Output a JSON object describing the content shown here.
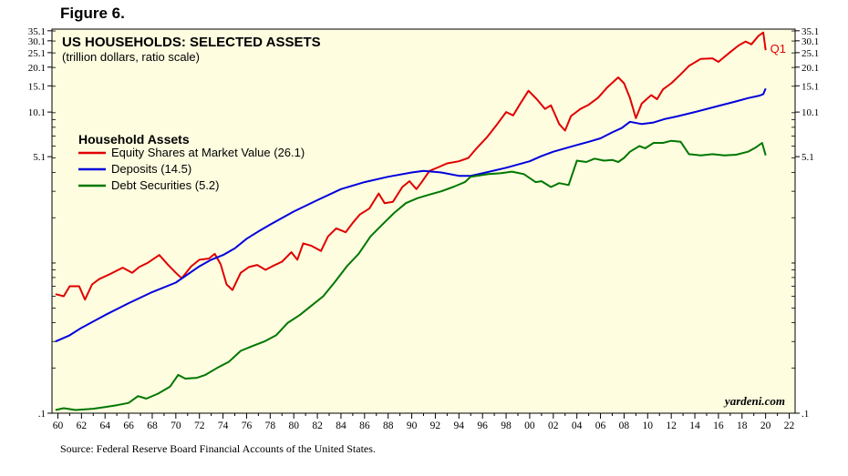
{
  "figure_label": "Figure 6.",
  "source": "Source: Federal Reserve Board Financial Accounts of the United States.",
  "chart_data": {
    "type": "line",
    "title": "US HOUSEHOLDS: SELECTED ASSETS",
    "subtitle": "(trillion dollars, ratio scale)",
    "legend_title": "Household Assets",
    "legend_placement": "upper-left",
    "watermark": "yardeni.com",
    "annotation": {
      "text": "Q1",
      "x": 2020.0,
      "y": 26.1,
      "color": "#e00000"
    },
    "y_scale": "log",
    "ylim": [
      0.1,
      36
    ],
    "xlim": [
      1959.5,
      2022.5
    ],
    "y_ticks": [
      0.1,
      5.1,
      10.1,
      15.1,
      20.1,
      25.1,
      30.1,
      35.1
    ],
    "y_tick_labels": [
      ".1",
      "5.1",
      "10.1",
      "15.1",
      "20.1",
      "25.1",
      "30.1",
      "35.1"
    ],
    "x_ticks": [
      1960,
      1962,
      1964,
      1966,
      1968,
      1970,
      1972,
      1974,
      1976,
      1978,
      1980,
      1982,
      1984,
      1986,
      1988,
      1990,
      1992,
      1994,
      1996,
      1998,
      2000,
      2002,
      2004,
      2006,
      2008,
      2010,
      2012,
      2014,
      2016,
      2018,
      2020,
      2022
    ],
    "x_tick_labels": [
      "60",
      "62",
      "64",
      "66",
      "68",
      "70",
      "72",
      "74",
      "76",
      "78",
      "80",
      "82",
      "84",
      "86",
      "88",
      "90",
      "92",
      "94",
      "96",
      "98",
      "00",
      "02",
      "04",
      "06",
      "08",
      "10",
      "12",
      "14",
      "16",
      "18",
      "20",
      "22"
    ],
    "grid": false,
    "series": [
      {
        "name": "Equity Shares at Market Value (26.1)",
        "color": "#e00000",
        "points": [
          [
            1959.8,
            0.62
          ],
          [
            1960.5,
            0.6
          ],
          [
            1961.0,
            0.7
          ],
          [
            1961.8,
            0.7
          ],
          [
            1962.3,
            0.57
          ],
          [
            1962.9,
            0.72
          ],
          [
            1963.5,
            0.78
          ],
          [
            1964.5,
            0.85
          ],
          [
            1965.5,
            0.93
          ],
          [
            1966.3,
            0.86
          ],
          [
            1966.9,
            0.94
          ],
          [
            1967.6,
            1.0
          ],
          [
            1968.6,
            1.13
          ],
          [
            1969.3,
            0.98
          ],
          [
            1970.0,
            0.86
          ],
          [
            1970.5,
            0.79
          ],
          [
            1971.3,
            0.95
          ],
          [
            1972.0,
            1.05
          ],
          [
            1972.8,
            1.07
          ],
          [
            1973.3,
            1.15
          ],
          [
            1973.8,
            0.98
          ],
          [
            1974.3,
            0.72
          ],
          [
            1974.8,
            0.66
          ],
          [
            1975.5,
            0.86
          ],
          [
            1976.2,
            0.94
          ],
          [
            1976.9,
            0.97
          ],
          [
            1977.6,
            0.9
          ],
          [
            1978.3,
            0.96
          ],
          [
            1979.0,
            1.02
          ],
          [
            1979.8,
            1.18
          ],
          [
            1980.3,
            1.05
          ],
          [
            1980.8,
            1.35
          ],
          [
            1981.5,
            1.3
          ],
          [
            1982.3,
            1.2
          ],
          [
            1982.9,
            1.5
          ],
          [
            1983.6,
            1.7
          ],
          [
            1984.4,
            1.6
          ],
          [
            1985.0,
            1.85
          ],
          [
            1985.6,
            2.1
          ],
          [
            1986.4,
            2.3
          ],
          [
            1987.2,
            2.9
          ],
          [
            1987.7,
            2.5
          ],
          [
            1988.4,
            2.55
          ],
          [
            1989.2,
            3.2
          ],
          [
            1989.8,
            3.5
          ],
          [
            1990.4,
            3.1
          ],
          [
            1990.9,
            3.5
          ],
          [
            1991.5,
            4.1
          ],
          [
            1992.3,
            4.35
          ],
          [
            1993.0,
            4.6
          ],
          [
            1994.0,
            4.75
          ],
          [
            1994.8,
            5.0
          ],
          [
            1995.5,
            5.8
          ],
          [
            1996.4,
            6.9
          ],
          [
            1997.2,
            8.3
          ],
          [
            1998.0,
            10.1
          ],
          [
            1998.6,
            9.6
          ],
          [
            1999.2,
            11.5
          ],
          [
            1999.9,
            14.0
          ],
          [
            2000.6,
            12.3
          ],
          [
            2001.3,
            10.6
          ],
          [
            2001.8,
            11.2
          ],
          [
            2002.5,
            8.4
          ],
          [
            2003.0,
            7.6
          ],
          [
            2003.5,
            9.5
          ],
          [
            2004.3,
            10.6
          ],
          [
            2005.0,
            11.3
          ],
          [
            2005.8,
            12.6
          ],
          [
            2006.6,
            14.8
          ],
          [
            2007.5,
            17.2
          ],
          [
            2008.0,
            15.7
          ],
          [
            2008.5,
            12.5
          ],
          [
            2009.0,
            9.2
          ],
          [
            2009.5,
            11.5
          ],
          [
            2010.3,
            13.1
          ],
          [
            2010.8,
            12.3
          ],
          [
            2011.3,
            14.3
          ],
          [
            2012.0,
            15.7
          ],
          [
            2012.8,
            18.0
          ],
          [
            2013.5,
            20.5
          ],
          [
            2014.5,
            22.8
          ],
          [
            2015.5,
            23.0
          ],
          [
            2016.0,
            21.8
          ],
          [
            2016.8,
            24.6
          ],
          [
            2017.7,
            28.0
          ],
          [
            2018.3,
            29.8
          ],
          [
            2018.8,
            28.5
          ],
          [
            2019.4,
            32.5
          ],
          [
            2019.8,
            34.2
          ],
          [
            2020.0,
            26.1
          ]
        ]
      },
      {
        "name": "Deposits (14.5)",
        "color": "#0000dd",
        "points": [
          [
            1959.8,
            0.3
          ],
          [
            1961.0,
            0.33
          ],
          [
            1962.0,
            0.37
          ],
          [
            1964.0,
            0.45
          ],
          [
            1966.0,
            0.54
          ],
          [
            1968.0,
            0.64
          ],
          [
            1970.0,
            0.74
          ],
          [
            1972.0,
            0.95
          ],
          [
            1973.0,
            1.05
          ],
          [
            1974.0,
            1.13
          ],
          [
            1975.0,
            1.25
          ],
          [
            1976.0,
            1.45
          ],
          [
            1977.0,
            1.62
          ],
          [
            1978.0,
            1.8
          ],
          [
            1980.0,
            2.2
          ],
          [
            1982.0,
            2.62
          ],
          [
            1984.0,
            3.1
          ],
          [
            1986.0,
            3.45
          ],
          [
            1988.0,
            3.75
          ],
          [
            1990.0,
            4.0
          ],
          [
            1991.0,
            4.1
          ],
          [
            1992.5,
            4.0
          ],
          [
            1994.0,
            3.8
          ],
          [
            1995.0,
            3.8
          ],
          [
            1996.0,
            3.95
          ],
          [
            1998.0,
            4.3
          ],
          [
            2000.0,
            4.75
          ],
          [
            2001.0,
            5.15
          ],
          [
            2002.0,
            5.5
          ],
          [
            2004.0,
            6.1
          ],
          [
            2005.0,
            6.4
          ],
          [
            2006.0,
            6.75
          ],
          [
            2007.0,
            7.4
          ],
          [
            2007.8,
            7.9
          ],
          [
            2008.5,
            8.7
          ],
          [
            2009.5,
            8.4
          ],
          [
            2010.5,
            8.6
          ],
          [
            2011.5,
            9.1
          ],
          [
            2012.5,
            9.45
          ],
          [
            2014.0,
            10.1
          ],
          [
            2016.0,
            11.1
          ],
          [
            2017.5,
            11.9
          ],
          [
            2018.5,
            12.5
          ],
          [
            2019.5,
            13.0
          ],
          [
            2019.8,
            13.3
          ],
          [
            2020.0,
            14.5
          ]
        ]
      },
      {
        "name": "Debt Securities (5.2)",
        "color": "#007700",
        "points": [
          [
            1959.8,
            0.105
          ],
          [
            1960.5,
            0.108
          ],
          [
            1961.5,
            0.105
          ],
          [
            1963.0,
            0.107
          ],
          [
            1964.0,
            0.11
          ],
          [
            1965.0,
            0.113
          ],
          [
            1966.0,
            0.117
          ],
          [
            1966.8,
            0.13
          ],
          [
            1967.5,
            0.125
          ],
          [
            1968.5,
            0.135
          ],
          [
            1969.5,
            0.15
          ],
          [
            1970.2,
            0.18
          ],
          [
            1970.8,
            0.17
          ],
          [
            1971.8,
            0.172
          ],
          [
            1972.5,
            0.18
          ],
          [
            1973.5,
            0.2
          ],
          [
            1974.5,
            0.22
          ],
          [
            1975.5,
            0.26
          ],
          [
            1976.5,
            0.28
          ],
          [
            1977.5,
            0.3
          ],
          [
            1978.5,
            0.33
          ],
          [
            1979.5,
            0.4
          ],
          [
            1980.5,
            0.45
          ],
          [
            1981.5,
            0.52
          ],
          [
            1982.5,
            0.6
          ],
          [
            1983.5,
            0.75
          ],
          [
            1984.5,
            0.95
          ],
          [
            1985.5,
            1.15
          ],
          [
            1986.5,
            1.5
          ],
          [
            1987.5,
            1.8
          ],
          [
            1988.5,
            2.15
          ],
          [
            1989.5,
            2.5
          ],
          [
            1990.5,
            2.7
          ],
          [
            1991.5,
            2.85
          ],
          [
            1992.5,
            3.0
          ],
          [
            1993.5,
            3.2
          ],
          [
            1994.5,
            3.45
          ],
          [
            1995.0,
            3.75
          ],
          [
            1996.0,
            3.85
          ],
          [
            1996.5,
            3.9
          ],
          [
            1997.5,
            3.95
          ],
          [
            1998.5,
            4.05
          ],
          [
            1999.5,
            3.9
          ],
          [
            2000.5,
            3.45
          ],
          [
            2001.0,
            3.5
          ],
          [
            2001.8,
            3.2
          ],
          [
            2002.5,
            3.4
          ],
          [
            2003.3,
            3.3
          ],
          [
            2004.0,
            4.8
          ],
          [
            2004.8,
            4.7
          ],
          [
            2005.5,
            4.95
          ],
          [
            2006.3,
            4.8
          ],
          [
            2007.0,
            4.85
          ],
          [
            2007.5,
            4.7
          ],
          [
            2008.0,
            5.0
          ],
          [
            2008.5,
            5.5
          ],
          [
            2009.3,
            6.0
          ],
          [
            2009.8,
            5.8
          ],
          [
            2010.5,
            6.3
          ],
          [
            2011.3,
            6.3
          ],
          [
            2012.0,
            6.5
          ],
          [
            2012.8,
            6.4
          ],
          [
            2013.5,
            5.3
          ],
          [
            2014.5,
            5.2
          ],
          [
            2015.5,
            5.3
          ],
          [
            2016.5,
            5.2
          ],
          [
            2017.5,
            5.25
          ],
          [
            2018.5,
            5.5
          ],
          [
            2019.2,
            5.9
          ],
          [
            2019.7,
            6.3
          ],
          [
            2020.0,
            5.2
          ]
        ]
      }
    ]
  }
}
